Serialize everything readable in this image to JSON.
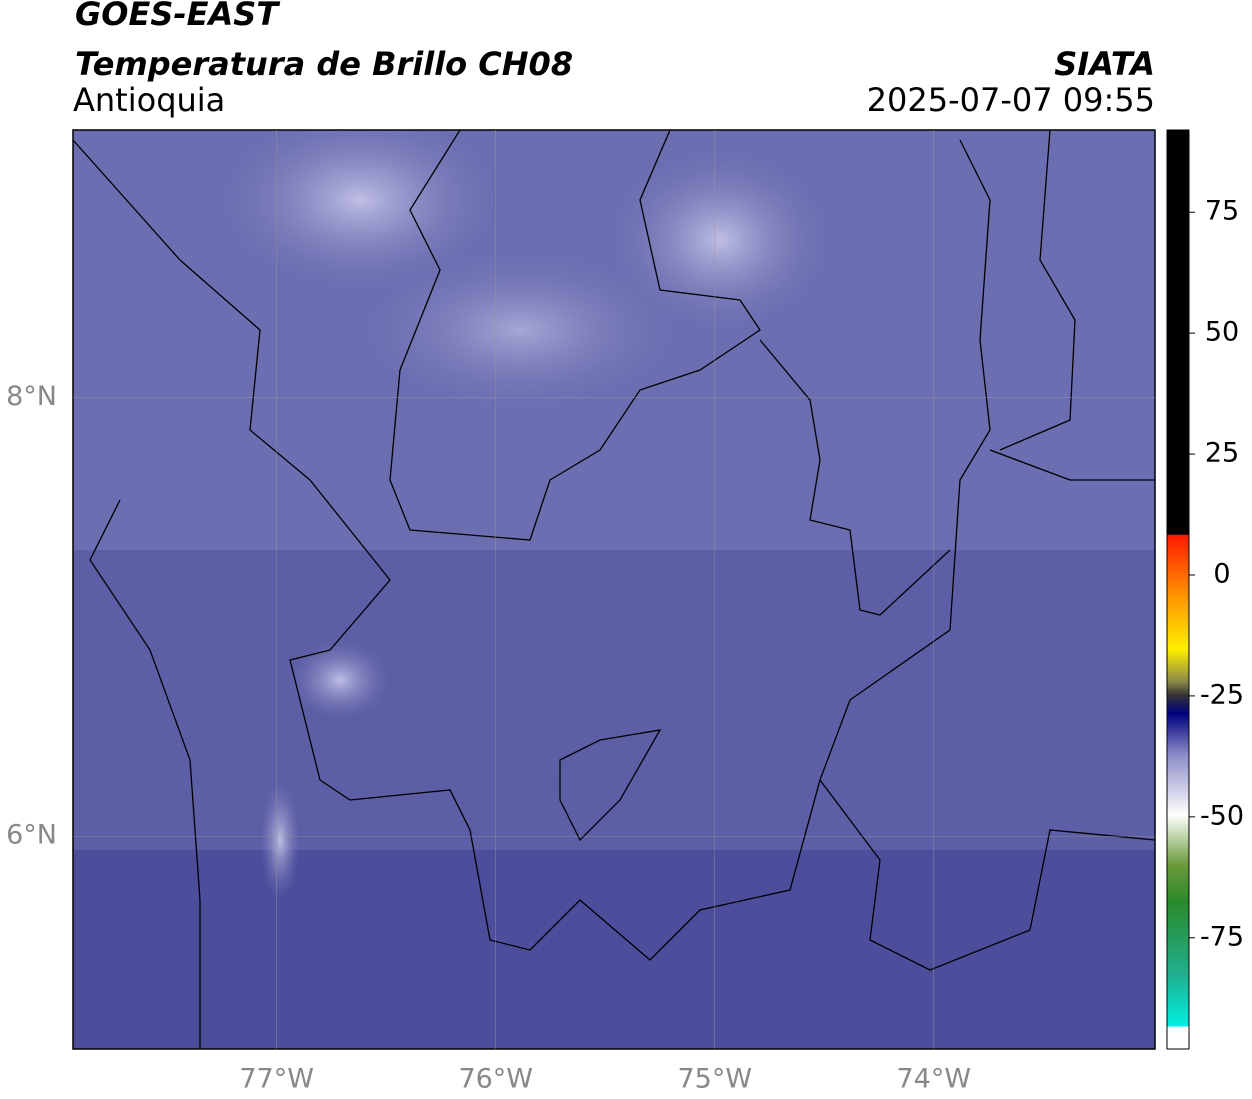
{
  "header": {
    "title": "GOES-EAST",
    "subtitle": "Temperatura de Brillo CH08",
    "region": "Antioquia",
    "source": "SIATA",
    "datetime": "2025-07-07 09:55"
  },
  "map": {
    "xlim": [
      -77.93,
      -72.99
    ],
    "ylim": [
      5.03,
      9.22
    ],
    "xticks": [
      {
        "value": -77,
        "label": "77°W"
      },
      {
        "value": -76,
        "label": "76°W"
      },
      {
        "value": -75,
        "label": "75°W"
      },
      {
        "value": -74,
        "label": "74°W"
      }
    ],
    "yticks": [
      {
        "value": 8,
        "label": "8°N"
      },
      {
        "value": 6,
        "label": "6°N"
      }
    ],
    "grid": true
  },
  "colorbar": {
    "lim": [
      -98,
      92
    ],
    "ticks": [
      75,
      50,
      25,
      0,
      -25,
      -50,
      -75
    ]
  }
}
